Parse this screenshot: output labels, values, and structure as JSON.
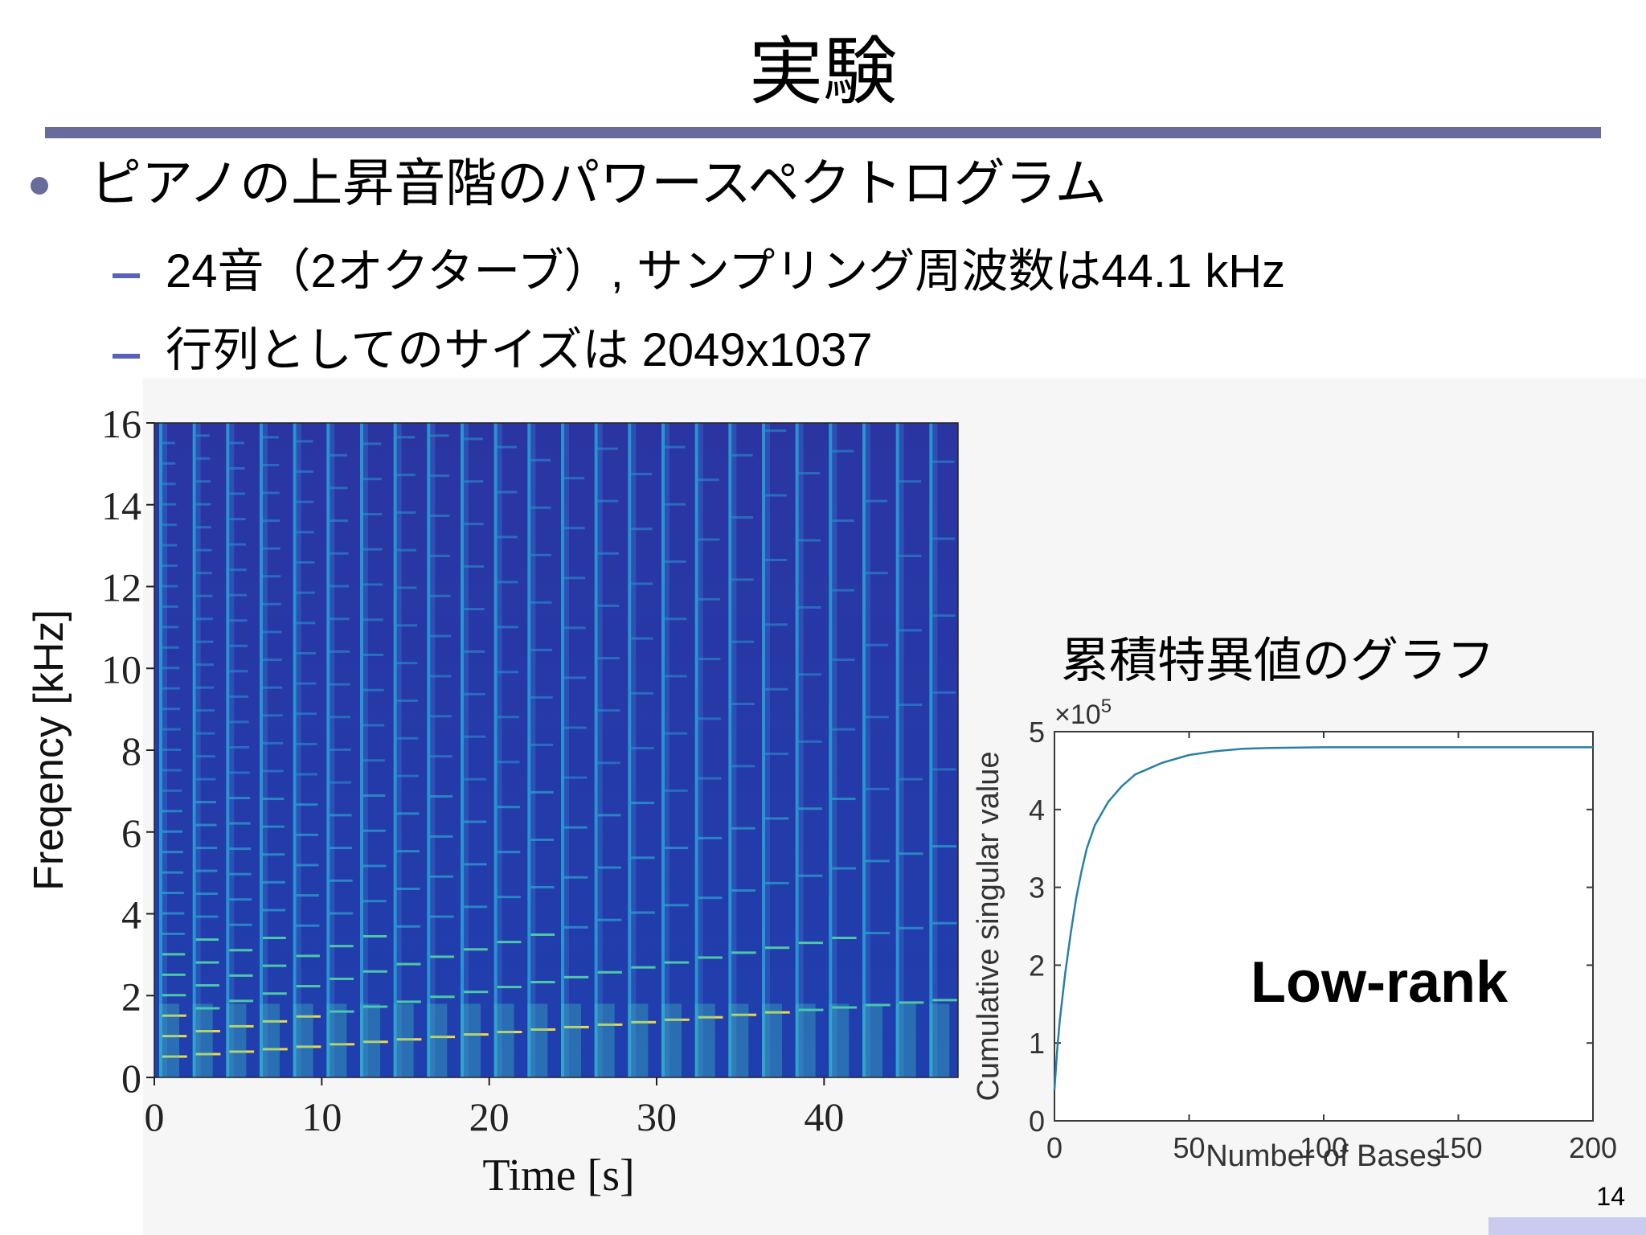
{
  "slide": {
    "title": "実験",
    "bullet": "ピアノの上昇音階のパワースペクトログラム",
    "sub_bullets": [
      "24音（2オクターブ）, サンプリング周波数は44.1 kHz",
      "行列としてのサイズは 2049x1037"
    ],
    "page_number": "14"
  },
  "spectrogram": {
    "xlabel": "Time [s]",
    "ylabel": "Freqency [kHz]",
    "xticks": [
      "0",
      "10",
      "20",
      "30",
      "40"
    ],
    "yticks": [
      "0",
      "2",
      "4",
      "6",
      "8",
      "10",
      "12",
      "14",
      "16"
    ],
    "xlim": [
      0,
      48
    ],
    "ylim": [
      0,
      16
    ],
    "note_count": 24,
    "colormap": "parula",
    "background_color": "#2f3aa0"
  },
  "singular_value_chart": {
    "heading": "累積特異値のグラフ",
    "annotation": "Low-rank",
    "scale_label": "×10",
    "scale_exponent": "5",
    "chart_data": {
      "type": "line",
      "title": "",
      "xlabel": "Number of Bases",
      "ylabel": "Cumulative singular value",
      "xlim": [
        0,
        200
      ],
      "ylim": [
        0,
        5
      ],
      "xticks": [
        "0",
        "50",
        "100",
        "150",
        "200"
      ],
      "yticks": [
        "0",
        "1",
        "2",
        "3",
        "4",
        "5"
      ],
      "x": [
        0,
        1,
        2,
        4,
        6,
        8,
        10,
        12,
        15,
        20,
        25,
        30,
        40,
        50,
        60,
        70,
        80,
        100,
        150,
        200
      ],
      "y": [
        0.4,
        0.9,
        1.3,
        1.9,
        2.4,
        2.85,
        3.2,
        3.5,
        3.8,
        4.1,
        4.3,
        4.45,
        4.6,
        4.7,
        4.75,
        4.78,
        4.79,
        4.8,
        4.8,
        4.8
      ],
      "line_color": "#2a7fa7",
      "grid": false
    }
  }
}
